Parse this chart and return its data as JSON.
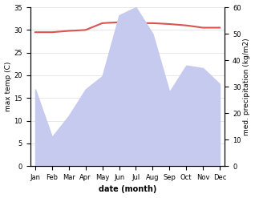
{
  "months": [
    "Jan",
    "Feb",
    "Mar",
    "Apr",
    "May",
    "Jun",
    "Jul",
    "Aug",
    "Sep",
    "Oct",
    "Nov",
    "Dec"
  ],
  "temp": [
    29.5,
    29.5,
    29.8,
    30.0,
    31.5,
    31.7,
    31.5,
    31.5,
    31.3,
    31.0,
    30.5,
    30.5
  ],
  "precip": [
    29,
    11,
    19,
    29,
    34,
    57,
    60,
    50,
    28,
    38,
    37,
    31
  ],
  "temp_color": "#d9534f",
  "precip_fill_color": "#c5caee",
  "temp_ylim": [
    0,
    35
  ],
  "precip_ylim": [
    0,
    60
  ],
  "temp_yticks": [
    0,
    5,
    10,
    15,
    20,
    25,
    30,
    35
  ],
  "precip_yticks": [
    0,
    10,
    20,
    30,
    40,
    50,
    60
  ],
  "xlabel": "date (month)",
  "ylabel_left": "max temp (C)",
  "ylabel_right": "med. precipitation (kg/m2)",
  "bg_color": "#ffffff",
  "grid_color": "#dddddd"
}
